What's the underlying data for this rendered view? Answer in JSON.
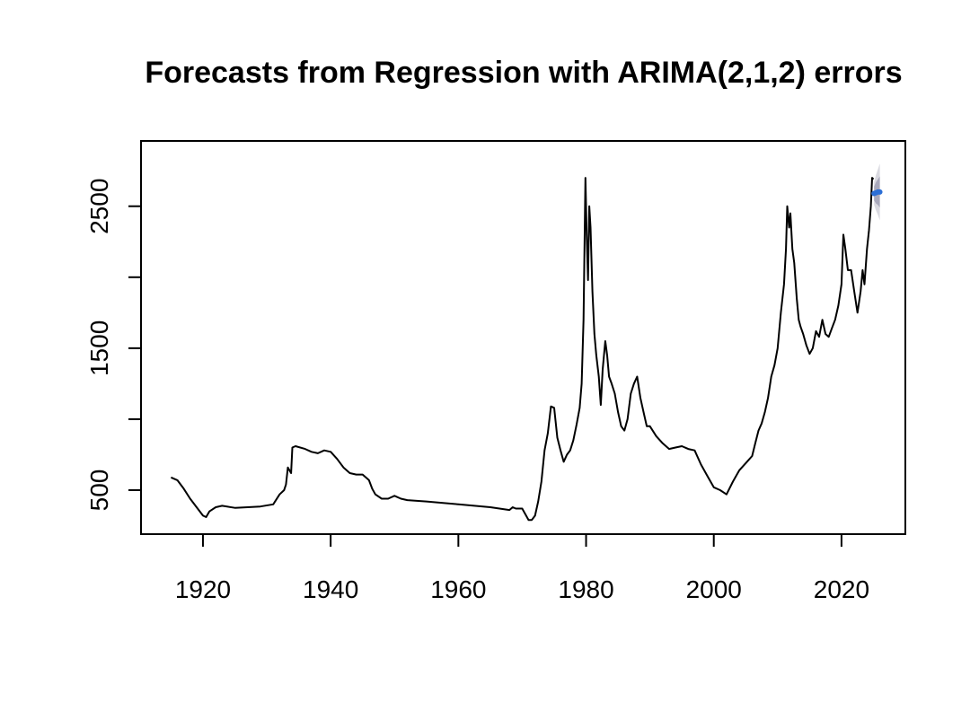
{
  "chart_data": {
    "type": "line",
    "title": "Forecasts from Regression with ARIMA(2,1,2) errors",
    "xlabel": "",
    "ylabel": "",
    "xlim": [
      1910.3,
      2030.0
    ],
    "ylim": [
      190,
      2960
    ],
    "x_ticks": [
      1920,
      1940,
      1960,
      1980,
      2000,
      2020
    ],
    "y_ticks": [
      500,
      1000,
      1500,
      2000,
      2500
    ],
    "y_tick_labels_shown": [
      "500",
      "",
      "1500",
      "",
      "2500"
    ],
    "grid": false,
    "legend": "none",
    "colors": {
      "history": "#000000",
      "forecast": "#2c6fd6",
      "band_outer": "#d9d9e0",
      "band_inner": "#a9a9bc"
    },
    "series": [
      {
        "role": "history",
        "x": [
          1915.0,
          1916.0,
          1917.0,
          1918.0,
          1919.0,
          1920.0,
          1920.5,
          1921.0,
          1922.0,
          1923.0,
          1925.0,
          1927.0,
          1929.0,
          1931.0,
          1932.0,
          1932.7,
          1933.0,
          1933.3,
          1933.8,
          1934.0,
          1934.5,
          1936.0,
          1937.0,
          1938.0,
          1939.0,
          1940.0,
          1941.0,
          1942.0,
          1943.0,
          1944.0,
          1945.0,
          1945.5,
          1946.0,
          1946.5,
          1947.0,
          1948.0,
          1949.0,
          1950.0,
          1951.0,
          1952.0,
          1955.0,
          1960.0,
          1965.0,
          1968.0,
          1968.5,
          1969.0,
          1970.0,
          1971.0,
          1971.5,
          1972.0,
          1972.5,
          1973.0,
          1973.5,
          1974.0,
          1974.5,
          1975.0,
          1975.5,
          1976.0,
          1976.5,
          1977.0,
          1977.5,
          1978.0,
          1978.5,
          1979.0,
          1979.3,
          1979.6,
          1979.9,
          1980.1,
          1980.3,
          1980.5,
          1980.7,
          1981.0,
          1981.3,
          1981.6,
          1982.0,
          1982.3,
          1982.6,
          1983.0,
          1983.3,
          1983.6,
          1984.0,
          1984.5,
          1985.0,
          1985.5,
          1986.0,
          1986.5,
          1987.0,
          1987.5,
          1988.0,
          1988.5,
          1989.0,
          1989.5,
          1990.0,
          1991.0,
          1992.0,
          1993.0,
          1994.0,
          1995.0,
          1996.0,
          1997.0,
          1998.0,
          1999.0,
          2000.0,
          2001.0,
          2002.0,
          2003.0,
          2004.0,
          2005.0,
          2006.0,
          2006.5,
          2007.0,
          2007.5,
          2008.0,
          2008.5,
          2009.0,
          2009.5,
          2010.0,
          2010.5,
          2011.0,
          2011.3,
          2011.5,
          2011.8,
          2012.0,
          2012.3,
          2012.6,
          2013.0,
          2013.3,
          2013.6,
          2014.0,
          2014.5,
          2015.0,
          2015.5,
          2016.0,
          2016.5,
          2017.0,
          2017.5,
          2018.0,
          2018.5,
          2019.0,
          2019.5,
          2020.0,
          2020.3,
          2020.6,
          2021.0,
          2021.5,
          2022.0,
          2022.5,
          2023.0,
          2023.3,
          2023.6,
          2024.0,
          2024.3,
          2024.6,
          2024.8,
          2025.0
        ],
        "y": [
          590,
          570,
          510,
          440,
          380,
          320,
          310,
          350,
          380,
          390,
          375,
          380,
          385,
          400,
          470,
          500,
          540,
          660,
          620,
          800,
          810,
          790,
          770,
          760,
          780,
          770,
          720,
          660,
          620,
          610,
          610,
          590,
          570,
          510,
          470,
          440,
          440,
          460,
          440,
          430,
          420,
          400,
          380,
          360,
          380,
          370,
          370,
          290,
          290,
          320,
          420,
          560,
          780,
          900,
          1090,
          1080,
          870,
          780,
          700,
          750,
          780,
          850,
          960,
          1080,
          1250,
          1700,
          2700,
          2300,
          1980,
          2500,
          2350,
          1900,
          1600,
          1450,
          1300,
          1100,
          1350,
          1550,
          1450,
          1300,
          1250,
          1180,
          1050,
          950,
          920,
          1000,
          1180,
          1250,
          1300,
          1150,
          1050,
          950,
          950,
          880,
          830,
          790,
          800,
          810,
          790,
          780,
          680,
          600,
          520,
          500,
          470,
          560,
          640,
          690,
          740,
          830,
          920,
          970,
          1050,
          1150,
          1300,
          1380,
          1500,
          1750,
          1950,
          2200,
          2500,
          2350,
          2450,
          2200,
          2100,
          1850,
          1700,
          1650,
          1600,
          1520,
          1460,
          1500,
          1620,
          1580,
          1700,
          1600,
          1580,
          1640,
          1700,
          1800,
          1950,
          2300,
          2200,
          2050,
          2050,
          1900,
          1750,
          1900,
          2050,
          1950,
          2200,
          2330,
          2500,
          2700,
          2690
        ]
      },
      {
        "role": "forecast",
        "x": [
          2025.1,
          2025.4,
          2025.7,
          2026.0
        ],
        "y": [
          2590,
          2595,
          2600,
          2600
        ],
        "lower80": [
          2540,
          2520,
          2510,
          2490
        ],
        "upper80": [
          2640,
          2670,
          2690,
          2710
        ],
        "lower95": [
          2510,
          2470,
          2440,
          2400
        ],
        "upper95": [
          2670,
          2720,
          2760,
          2800
        ]
      }
    ]
  }
}
